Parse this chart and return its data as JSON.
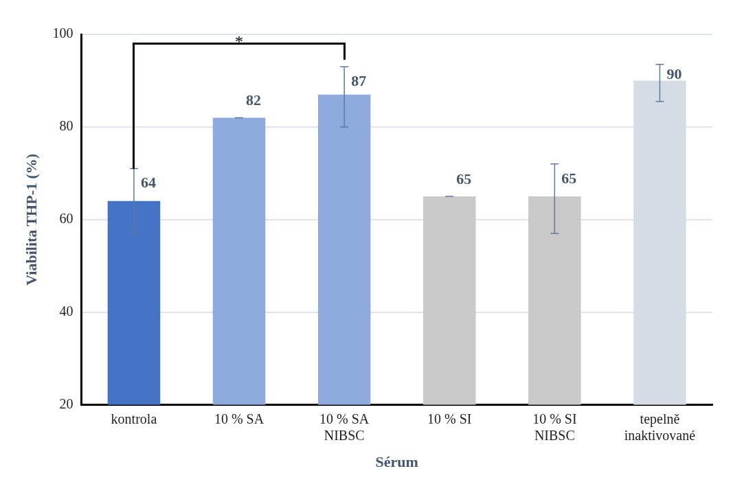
{
  "chart_data": {
    "type": "bar",
    "xlabel": "Sérum",
    "ylabel": "Viabilita THP-1 (%)",
    "categories": [
      "kontrola",
      "10 % SA",
      "10 % SA NIBSC",
      "10 % SI",
      "10 % SI NIBSC",
      "tepelně inaktivované"
    ],
    "values": [
      64,
      82,
      87,
      65,
      65,
      90
    ],
    "colors": [
      "#4472c4",
      "#8faadc",
      "#8faadc",
      "#c9c9c9",
      "#c9c9c9",
      "#d6dce5"
    ],
    "errors": [
      7,
      0,
      [
        80,
        93
      ],
      0,
      [
        57,
        72
      ],
      [
        85.5,
        93.5
      ]
    ],
    "data_labels": true,
    "ylim": [
      20,
      100
    ],
    "yticks": [
      20,
      40,
      60,
      80,
      100
    ],
    "grid": "y",
    "legend": false,
    "annotations": [
      "*"
    ]
  }
}
